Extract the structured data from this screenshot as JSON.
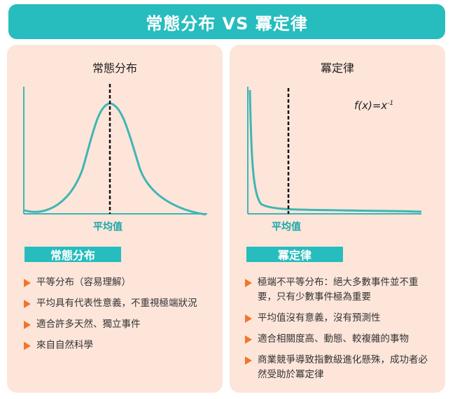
{
  "header": {
    "title": "常態分布 VS 冪定律"
  },
  "left": {
    "title": "常態分布",
    "axis_caption": "平均值",
    "tag": "常態分布",
    "bullets": [
      "平等分布（容易理解）",
      "平均具有代表性意義，不重視極端狀況",
      "適合許多天然、獨立事件",
      "來自自然科學"
    ]
  },
  "right": {
    "title": "冪定律",
    "axis_caption": "平均值",
    "formula_base": "f(x)=x",
    "formula_exp": "-1",
    "tag": "冪定律",
    "bullets": [
      "極端不平等分布：絕大多數事件並不重要，只有少數事件極為重要",
      "平均值沒有意義，沒有預測性",
      "適合相關度高、動態、較複雜的事物",
      "商業競爭導致指數級進化懸殊，成功者必然受助於冪定律"
    ]
  },
  "colors": {
    "accent": "#27bcbe",
    "curve": "#3fb5b4",
    "bullet": "#f2752b",
    "panel": "#fde5da"
  }
}
